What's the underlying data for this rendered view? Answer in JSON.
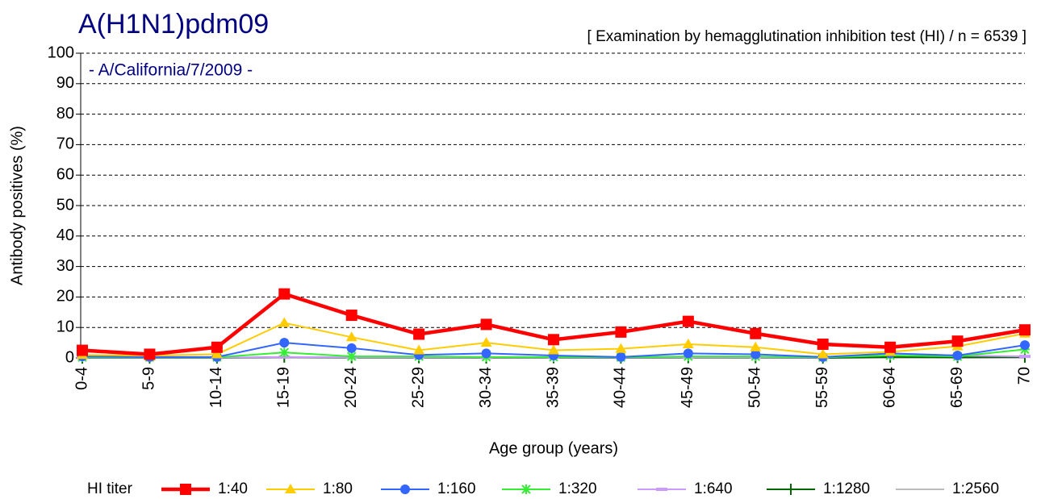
{
  "chart_data": {
    "type": "line",
    "title": "A(H1N1)pdm09",
    "subtitle": "[ Examination by hemagglutination inhibition test (HI)  /  n = 6539 ]",
    "annotation": "- A/California/7/2009 -",
    "y_label": "Antibody positives (%)",
    "x_label": "Age group (years)",
    "legend_title": "HI titer",
    "categories": [
      "0-4",
      "5-9",
      "10-14",
      "15-19",
      "20-24",
      "25-29",
      "30-34",
      "35-39",
      "40-44",
      "45-49",
      "50-54",
      "55-59",
      "60-64",
      "65-69",
      "70"
    ],
    "ylim": [
      0,
      100
    ],
    "yticks": [
      0,
      10,
      20,
      30,
      40,
      50,
      60,
      70,
      80,
      90,
      100
    ],
    "grid": true,
    "legend": "bottom",
    "series": [
      {
        "name": "1:40",
        "color": "#ff0000",
        "marker": "square",
        "values": [
          2.5,
          1.2,
          3.5,
          21,
          14,
          7.8,
          11,
          6,
          8.5,
          12,
          8,
          4.5,
          3.5,
          5.5,
          9.2
        ]
      },
      {
        "name": "1:80",
        "color": "#ffcc00",
        "marker": "triangle",
        "values": [
          1,
          0.8,
          1.2,
          11.5,
          6.8,
          2.5,
          5,
          2.5,
          3,
          4.5,
          3.5,
          1.2,
          2,
          3.8,
          8
        ]
      },
      {
        "name": "1:160",
        "color": "#3366ff",
        "marker": "circle",
        "values": [
          0.5,
          0.3,
          0.3,
          5,
          3.2,
          1,
          1.5,
          0.8,
          0.3,
          1.5,
          1.2,
          0.3,
          1.5,
          0.8,
          4.2
        ]
      },
      {
        "name": "1:320",
        "color": "#33ee33",
        "marker": "asterisk",
        "values": [
          0.2,
          0.2,
          0.2,
          1.8,
          0.5,
          0.5,
          0.3,
          0.3,
          0.2,
          0.5,
          0.5,
          0.2,
          0.8,
          0.5,
          2.8
        ]
      },
      {
        "name": "1:640",
        "color": "#cc99ff",
        "marker": "dash",
        "values": [
          0.1,
          0.1,
          0.1,
          0.3,
          0.2,
          0.2,
          0.1,
          0.2,
          0.1,
          0.2,
          0.2,
          0.1,
          1.5,
          0.8,
          0.5
        ]
      },
      {
        "name": "1:1280",
        "color": "#006600",
        "marker": "plus",
        "values": [
          0,
          0,
          0,
          0.3,
          0.1,
          0.1,
          0,
          0.1,
          0,
          0.1,
          0.1,
          0,
          0.3,
          0.2,
          0.3
        ]
      },
      {
        "name": "1:2560",
        "color": "#bbbbbb",
        "marker": "none",
        "values": [
          0,
          0,
          0,
          0,
          0,
          0,
          0,
          0,
          0,
          0,
          0,
          0,
          0,
          0,
          0
        ]
      }
    ]
  }
}
